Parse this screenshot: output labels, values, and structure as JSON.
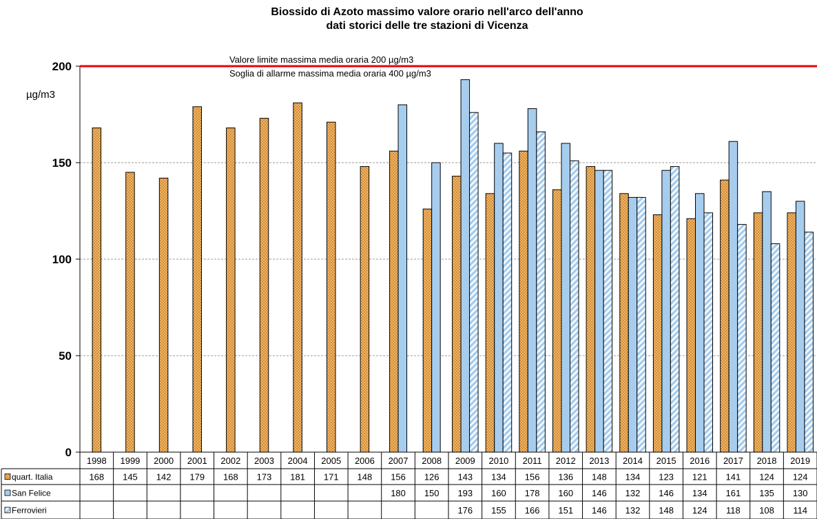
{
  "chart_data": {
    "type": "bar",
    "title": "Biossido di Azoto massimo valore orario nell'arco dell'anno",
    "subtitle": "dati storici delle tre stazioni di Vicenza",
    "ylabel": "µg/m3",
    "ylim": [
      0,
      200
    ],
    "yticks": [
      0,
      50,
      100,
      150,
      200
    ],
    "grid": true,
    "legend": "table-below",
    "categories": [
      "1998",
      "1999",
      "2000",
      "2001",
      "2002",
      "2003",
      "2004",
      "2005",
      "2006",
      "2007",
      "2008",
      "2009",
      "2010",
      "2011",
      "2012",
      "2013",
      "2014",
      "2015",
      "2016",
      "2017",
      "2018",
      "2019"
    ],
    "series": [
      {
        "name": "quart. Italia",
        "color": "#F6B45E",
        "pattern": "dots",
        "values": [
          168,
          145,
          142,
          179,
          168,
          173,
          181,
          171,
          148,
          156,
          126,
          143,
          134,
          156,
          136,
          148,
          134,
          123,
          121,
          141,
          124,
          124
        ]
      },
      {
        "name": "San Felice",
        "color": "#A7CDEE",
        "pattern": "solid",
        "values": [
          null,
          null,
          null,
          null,
          null,
          null,
          null,
          null,
          null,
          180,
          150,
          193,
          160,
          178,
          160,
          146,
          132,
          146,
          134,
          161,
          135,
          130
        ]
      },
      {
        "name": "Ferrovieri",
        "color": "#A7CDEE",
        "pattern": "stripes",
        "values": [
          null,
          null,
          null,
          null,
          null,
          null,
          null,
          null,
          null,
          null,
          null,
          176,
          155,
          166,
          151,
          146,
          132,
          148,
          124,
          118,
          108,
          114
        ]
      }
    ],
    "annotations": [
      {
        "text": "Valore limite massima media oraria 200 µg/m3",
        "y": 200,
        "line_color": "#E8000B"
      },
      {
        "text": "Soglia di allarme massima media oraria 400 µg/m3"
      }
    ]
  }
}
